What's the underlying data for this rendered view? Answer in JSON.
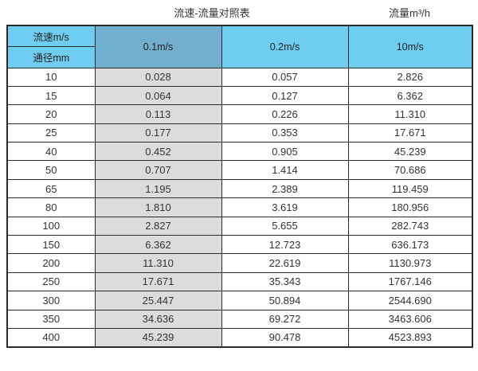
{
  "page": {
    "title_left": "流速-流量对照表",
    "title_right": "流量m³/h"
  },
  "chart_data": {
    "type": "table",
    "title": "流速-流量对照表",
    "right_title": "流量m³/h",
    "corner_top": "流速m/s",
    "corner_bottom": "通径mm",
    "columns": [
      "0.1m/s",
      "0.2m/s",
      "10m/s"
    ],
    "rows": [
      [
        "10",
        "0.028",
        "0.057",
        "2.826"
      ],
      [
        "15",
        "0.064",
        "0.127",
        "6.362"
      ],
      [
        "20",
        "0.113",
        "0.226",
        "11.310"
      ],
      [
        "25",
        "0.177",
        "0.353",
        "17.671"
      ],
      [
        "40",
        "0.452",
        "0.905",
        "45.239"
      ],
      [
        "50",
        "0.707",
        "1.414",
        "70.686"
      ],
      [
        "65",
        "1.195",
        "2.389",
        "119.459"
      ],
      [
        "80",
        "1.810",
        "3.619",
        "180.956"
      ],
      [
        "100",
        "2.827",
        "5.655",
        "282.743"
      ],
      [
        "150",
        "6.362",
        "12.723",
        "636.173"
      ],
      [
        "200",
        "11.310",
        "22.619",
        "1130.973"
      ],
      [
        "250",
        "17.671",
        "35.343",
        "1767.146"
      ],
      [
        "300",
        "25.447",
        "50.894",
        "2544.690"
      ],
      [
        "350",
        "34.636",
        "69.272",
        "3463.606"
      ],
      [
        "400",
        "45.239",
        "90.478",
        "4523.893"
      ]
    ]
  },
  "colors": {
    "header_blue": "#6fcdf2",
    "header_dark_blue": "#72afcf",
    "highlight_gray": "#dcdcdc",
    "border": "#2b2b2b"
  }
}
